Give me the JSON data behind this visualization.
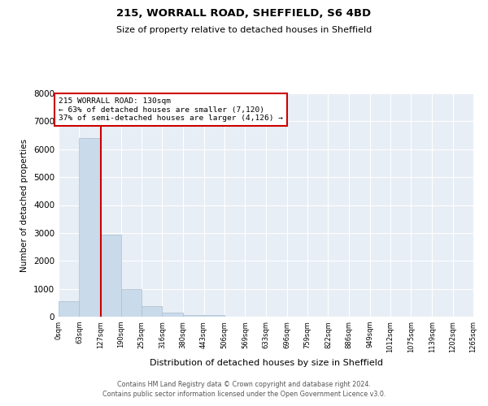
{
  "title": "215, WORRALL ROAD, SHEFFIELD, S6 4BD",
  "subtitle": "Size of property relative to detached houses in Sheffield",
  "xlabel": "Distribution of detached houses by size in Sheffield",
  "ylabel": "Number of detached properties",
  "bar_color": "#c9daea",
  "bar_edge_color": "#aabdd0",
  "annotation_box_color": "#cc0000",
  "property_line_color": "#cc0000",
  "property_value": 130,
  "annotation_title": "215 WORRALL ROAD: 130sqm",
  "annotation_line1": "← 63% of detached houses are smaller (7,120)",
  "annotation_line2": "37% of semi-detached houses are larger (4,126) →",
  "bin_edges": [
    0,
    63,
    127,
    190,
    253,
    316,
    380,
    443,
    506,
    569,
    633,
    696,
    759,
    822,
    886,
    949,
    1012,
    1075,
    1139,
    1202,
    1265
  ],
  "bin_counts": [
    560,
    6400,
    2950,
    975,
    370,
    155,
    70,
    55,
    0,
    0,
    0,
    0,
    0,
    0,
    0,
    0,
    0,
    0,
    0,
    0
  ],
  "ylim": [
    0,
    8000
  ],
  "yticks": [
    0,
    1000,
    2000,
    3000,
    4000,
    5000,
    6000,
    7000,
    8000
  ],
  "tick_labels": [
    "0sqm",
    "63sqm",
    "127sqm",
    "190sqm",
    "253sqm",
    "316sqm",
    "380sqm",
    "443sqm",
    "506sqm",
    "569sqm",
    "633sqm",
    "696sqm",
    "759sqm",
    "822sqm",
    "886sqm",
    "949sqm",
    "1012sqm",
    "1075sqm",
    "1139sqm",
    "1202sqm",
    "1265sqm"
  ],
  "footer_line1": "Contains HM Land Registry data © Crown copyright and database right 2024.",
  "footer_line2": "Contains public sector information licensed under the Open Government Licence v3.0."
}
